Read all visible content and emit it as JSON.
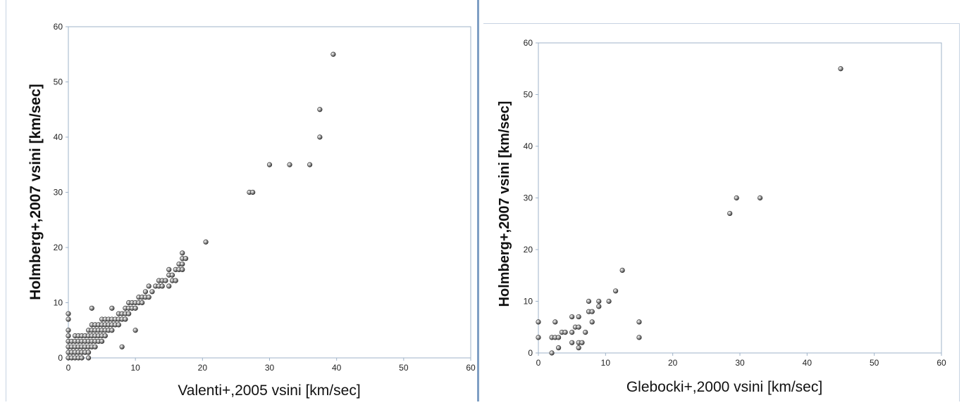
{
  "chart_data": [
    {
      "type": "scatter",
      "xlabel": "Valenti+,2005 vsini [km/sec]",
      "ylabel": "Holmberg+,2007 vsini [km/sec]",
      "xlim": [
        0,
        60
      ],
      "ylim": [
        0,
        60
      ],
      "xticks": [
        0,
        10,
        20,
        30,
        40,
        50,
        60
      ],
      "yticks": [
        0,
        10,
        20,
        30,
        40,
        50,
        60
      ],
      "grid": false,
      "marker_color": "#7a7a7a",
      "points": [
        [
          0,
          0
        ],
        [
          0,
          1
        ],
        [
          0,
          2
        ],
        [
          0,
          3
        ],
        [
          0,
          4
        ],
        [
          0,
          5
        ],
        [
          0,
          7
        ],
        [
          0,
          8
        ],
        [
          0.5,
          0
        ],
        [
          0.5,
          1
        ],
        [
          0.5,
          2
        ],
        [
          0.5,
          3
        ],
        [
          1,
          0
        ],
        [
          1,
          1
        ],
        [
          1,
          2
        ],
        [
          1,
          3
        ],
        [
          1,
          4
        ],
        [
          1.5,
          0
        ],
        [
          1.5,
          1
        ],
        [
          1.5,
          2
        ],
        [
          1.5,
          3
        ],
        [
          1.5,
          4
        ],
        [
          2,
          0
        ],
        [
          2,
          1
        ],
        [
          2,
          2
        ],
        [
          2,
          3
        ],
        [
          2,
          4
        ],
        [
          2.5,
          1
        ],
        [
          2.5,
          2
        ],
        [
          2.5,
          3
        ],
        [
          2.5,
          4
        ],
        [
          3,
          0
        ],
        [
          3,
          1
        ],
        [
          3,
          2
        ],
        [
          3,
          3
        ],
        [
          3,
          4
        ],
        [
          3,
          5
        ],
        [
          3.5,
          2
        ],
        [
          3.5,
          3
        ],
        [
          3.5,
          4
        ],
        [
          3.5,
          5
        ],
        [
          3.5,
          6
        ],
        [
          3.5,
          9
        ],
        [
          4,
          2
        ],
        [
          4,
          3
        ],
        [
          4,
          4
        ],
        [
          4,
          5
        ],
        [
          4,
          6
        ],
        [
          4.5,
          3
        ],
        [
          4.5,
          4
        ],
        [
          4.5,
          5
        ],
        [
          4.5,
          6
        ],
        [
          5,
          3
        ],
        [
          5,
          4
        ],
        [
          5,
          5
        ],
        [
          5,
          6
        ],
        [
          5,
          7
        ],
        [
          5.5,
          4
        ],
        [
          5.5,
          5
        ],
        [
          5.5,
          6
        ],
        [
          5.5,
          7
        ],
        [
          6,
          5
        ],
        [
          6,
          6
        ],
        [
          6,
          7
        ],
        [
          6.5,
          5
        ],
        [
          6.5,
          6
        ],
        [
          6.5,
          7
        ],
        [
          6.5,
          9
        ],
        [
          7,
          6
        ],
        [
          7,
          7
        ],
        [
          7.5,
          6
        ],
        [
          7.5,
          7
        ],
        [
          7.5,
          8
        ],
        [
          8,
          2
        ],
        [
          8,
          7
        ],
        [
          8,
          8
        ],
        [
          8.5,
          7
        ],
        [
          8.5,
          8
        ],
        [
          8.5,
          9
        ],
        [
          9,
          8
        ],
        [
          9,
          9
        ],
        [
          9,
          10
        ],
        [
          9.5,
          9
        ],
        [
          9.5,
          10
        ],
        [
          10,
          5
        ],
        [
          10,
          9
        ],
        [
          10,
          10
        ],
        [
          10.5,
          10
        ],
        [
          10.5,
          11
        ],
        [
          11,
          10
        ],
        [
          11,
          11
        ],
        [
          11.5,
          11
        ],
        [
          11.5,
          12
        ],
        [
          12,
          11
        ],
        [
          12,
          13
        ],
        [
          12.5,
          12
        ],
        [
          13,
          13
        ],
        [
          13.5,
          13
        ],
        [
          13.5,
          14
        ],
        [
          14,
          13
        ],
        [
          14,
          14
        ],
        [
          14.5,
          14
        ],
        [
          15,
          13
        ],
        [
          15,
          15
        ],
        [
          15,
          16
        ],
        [
          15.5,
          14
        ],
        [
          15.5,
          15
        ],
        [
          16,
          14
        ],
        [
          16,
          16
        ],
        [
          16.5,
          16
        ],
        [
          16.5,
          17
        ],
        [
          17,
          16
        ],
        [
          17,
          17
        ],
        [
          17,
          18
        ],
        [
          17,
          19
        ],
        [
          17.5,
          18
        ],
        [
          20.5,
          21
        ],
        [
          27,
          30
        ],
        [
          27.5,
          30
        ],
        [
          30,
          35
        ],
        [
          33,
          35
        ],
        [
          36,
          35
        ],
        [
          37.5,
          40
        ],
        [
          37.5,
          45
        ],
        [
          39.5,
          55
        ]
      ]
    },
    {
      "type": "scatter",
      "xlabel": "Glebocki+,2000 vsini [km/sec]",
      "ylabel": "Holmberg+,2007 vsini [km/sec]",
      "xlim": [
        0,
        60
      ],
      "ylim": [
        0,
        60
      ],
      "xticks": [
        0,
        10,
        20,
        30,
        40,
        50,
        60
      ],
      "yticks": [
        0,
        10,
        20,
        30,
        40,
        50,
        60
      ],
      "grid": false,
      "marker_color": "#7a7a7a",
      "points": [
        [
          0,
          3
        ],
        [
          0,
          6
        ],
        [
          2,
          0
        ],
        [
          2,
          3
        ],
        [
          2.5,
          3
        ],
        [
          2.5,
          6
        ],
        [
          3,
          3
        ],
        [
          3,
          1
        ],
        [
          3.5,
          4
        ],
        [
          4,
          4
        ],
        [
          5,
          2
        ],
        [
          5,
          4
        ],
        [
          5,
          7
        ],
        [
          5.5,
          5
        ],
        [
          6,
          1
        ],
        [
          6,
          2
        ],
        [
          6,
          5
        ],
        [
          6,
          7
        ],
        [
          6.5,
          2
        ],
        [
          7,
          4
        ],
        [
          7.5,
          8
        ],
        [
          7.5,
          10
        ],
        [
          8,
          6
        ],
        [
          8,
          8
        ],
        [
          9,
          9
        ],
        [
          9,
          10
        ],
        [
          10.5,
          10
        ],
        [
          11.5,
          12
        ],
        [
          12.5,
          16
        ],
        [
          15,
          3
        ],
        [
          15,
          6
        ],
        [
          28.5,
          27
        ],
        [
          29.5,
          30
        ],
        [
          33,
          30
        ],
        [
          45,
          55
        ]
      ]
    }
  ]
}
